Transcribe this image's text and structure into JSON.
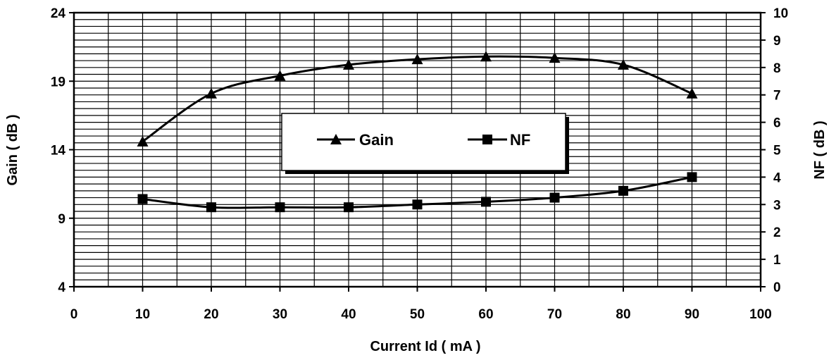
{
  "chart_data": {
    "type": "line",
    "title": "",
    "xlabel": "Current Id ( mA )",
    "ylabel": "Gain ( dB )",
    "y2label": "NF ( dB )",
    "xlim": [
      0,
      100
    ],
    "ylim": [
      4,
      24
    ],
    "y2lim": [
      0,
      10
    ],
    "x_ticks": [
      "0",
      "10",
      "20",
      "30",
      "40",
      "50",
      "60",
      "70",
      "80",
      "90",
      "100"
    ],
    "y_ticks": [
      "4",
      "9",
      "14",
      "19",
      "24"
    ],
    "y2_ticks": [
      "0",
      "1",
      "2",
      "3",
      "4",
      "5",
      "6",
      "7",
      "8",
      "9",
      "10"
    ],
    "grid": true,
    "legend_position": "center",
    "x": [
      10,
      20,
      30,
      40,
      50,
      60,
      70,
      80,
      90
    ],
    "series": [
      {
        "name": "Gain",
        "axis": "left",
        "marker": "triangle",
        "values": [
          14.6,
          18.1,
          19.4,
          20.2,
          20.6,
          20.8,
          20.7,
          20.2,
          18.1
        ]
      },
      {
        "name": "NF",
        "axis": "right",
        "marker": "square",
        "values": [
          3.2,
          2.9,
          2.9,
          2.9,
          3.0,
          3.1,
          3.25,
          3.5,
          4.0
        ]
      }
    ]
  }
}
